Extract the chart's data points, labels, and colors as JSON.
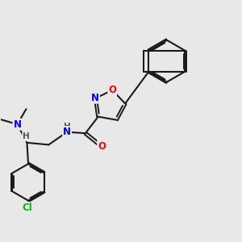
{
  "background_color": "#e8e8e8",
  "bond_color": "#1a1a1a",
  "atom_colors": {
    "O": "#ff0000",
    "N": "#0000ff",
    "Cl": "#00bb00",
    "H": "#555555",
    "C": "#1a1a1a"
  },
  "figsize": [
    3.0,
    3.0
  ],
  "dpi": 100
}
